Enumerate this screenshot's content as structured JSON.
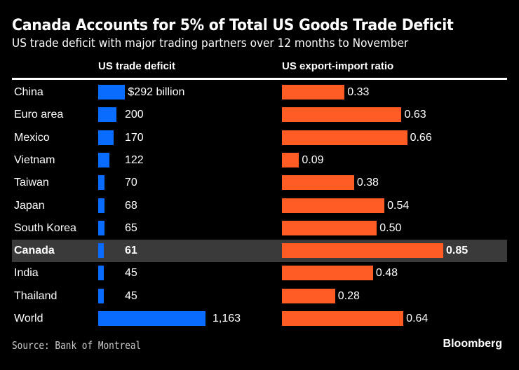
{
  "chart_data": {
    "type": "bar",
    "title": "Canada Accounts for 5% of Total US Goods Trade Deficit",
    "subtitle": "US trade deficit with major trading partners over 12 months to November",
    "categories": [
      "China",
      "Euro area",
      "Mexico",
      "Vietnam",
      "Taiwan",
      "Japan",
      "South Korea",
      "Canada",
      "India",
      "Thailand",
      "World"
    ],
    "highlight": "Canada",
    "series": [
      {
        "name": "US trade deficit",
        "unit": "billion USD",
        "color": "#0a6cff",
        "values": [
          292,
          200,
          170,
          122,
          70,
          68,
          65,
          61,
          45,
          45,
          1163
        ],
        "labels": [
          "$292 billion",
          "200",
          "170",
          "122",
          "70",
          "68",
          "65",
          "61",
          "45",
          "45",
          "1,163"
        ]
      },
      {
        "name": "US export-import ratio",
        "color": "#ff5b25",
        "values": [
          0.33,
          0.63,
          0.66,
          0.09,
          0.38,
          0.54,
          0.5,
          0.85,
          0.48,
          0.28,
          0.64
        ],
        "labels": [
          "0.33",
          "0.63",
          "0.66",
          "0.09",
          "0.38",
          "0.54",
          "0.50",
          "0.85",
          "0.48",
          "0.28",
          "0.64"
        ]
      }
    ],
    "source": "Source: Bank of Montreal",
    "brand": "Bloomberg"
  }
}
